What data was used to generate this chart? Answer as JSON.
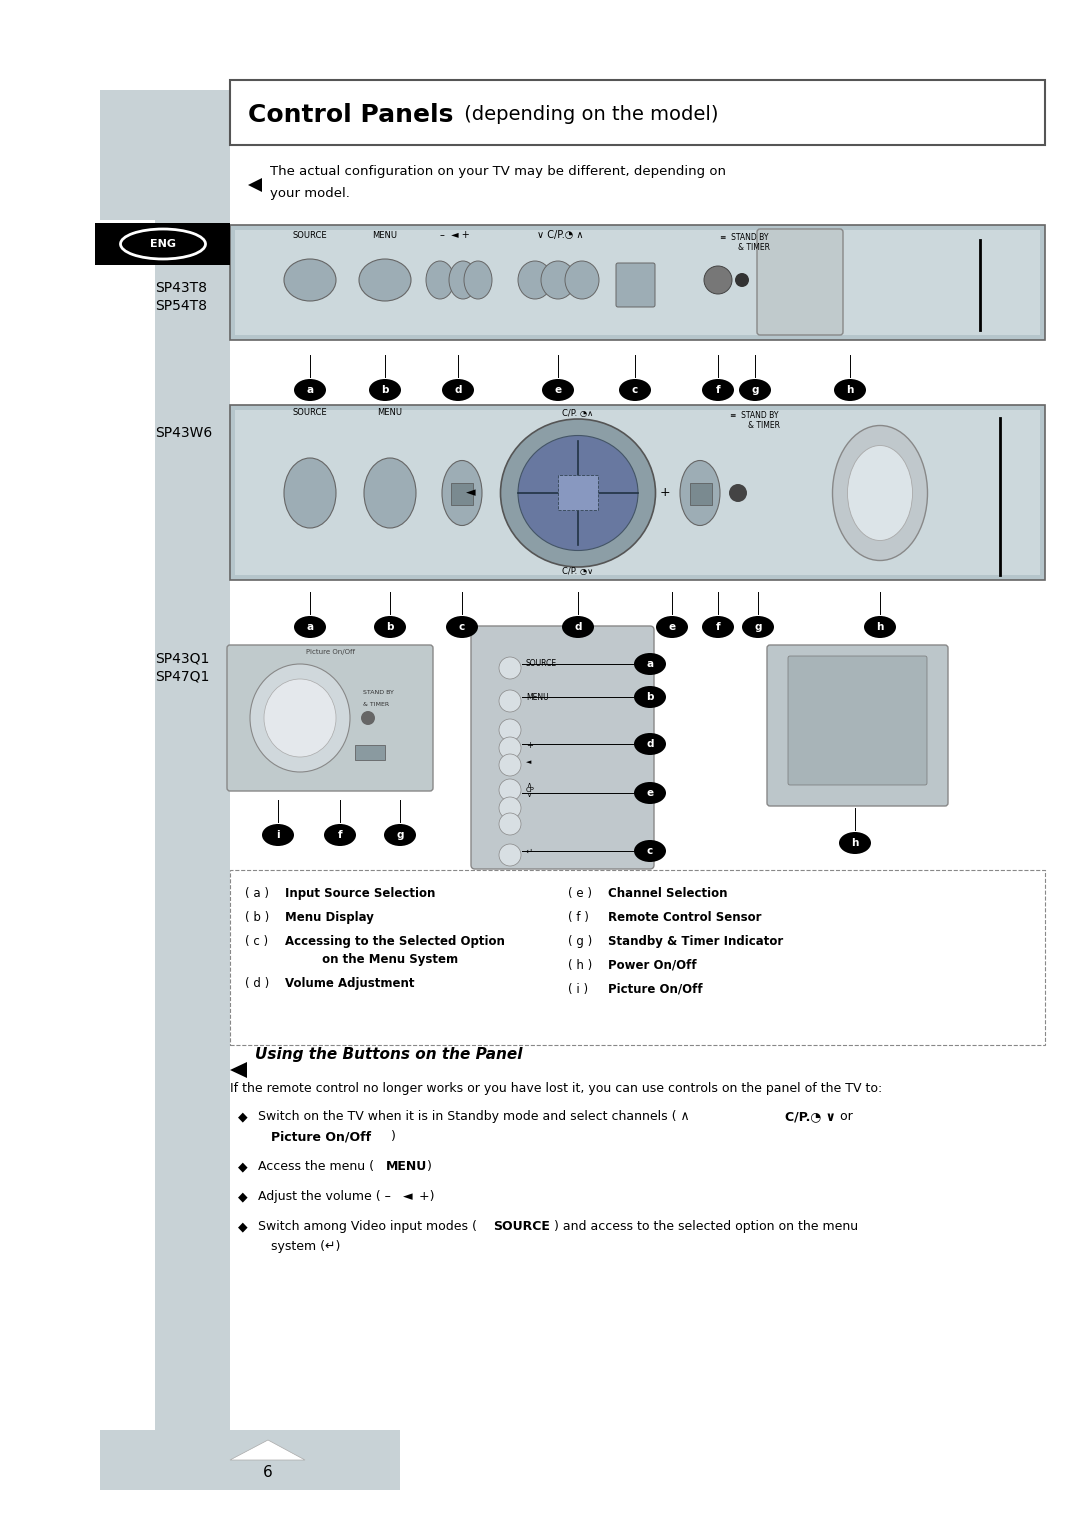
{
  "page_bg": "#ffffff",
  "sidebar_color": "#c8d2d6",
  "title": "Control Panels",
  "title_normal": " (depending on the model)",
  "note": "The actual configuration on your TV may be different, depending on\nyour model.",
  "model1": "SP43T8\nSP54T8",
  "model2": "SP43W6",
  "model3": "SP43Q1\nSP47Q1",
  "legend_left": [
    [
      "( a )",
      "Input Source Selection"
    ],
    [
      "( b )",
      "Menu Display"
    ],
    [
      "( c )",
      "Accessing to the Selected Option\n         on the Menu System"
    ],
    [
      "( d )",
      "Volume Adjustment"
    ]
  ],
  "legend_right": [
    [
      "( e )",
      "Channel Selection"
    ],
    [
      "( f )",
      "Remote Control Sensor"
    ],
    [
      "( g )",
      "Standby & Timer Indicator"
    ],
    [
      "( h )",
      "Power On/Off"
    ],
    [
      "( i )",
      "Picture On/Off"
    ]
  ],
  "using_title": "Using the Buttons on the Panel",
  "body_text": "If the remote control no longer works or you have lost it, you can use controls on the panel of the TV to:",
  "bullet1_pre": "Switch on the TV when it is in Standby mode and select channels ( ",
  "bullet1_bold": "∧ C/P.◔ ∨",
  "bullet1_post": " or",
  "bullet1b_bold": "Picture On/Off",
  "bullet1b_post": ")",
  "bullet2_pre": "Access the menu ( ",
  "bullet2_bold": "MENU",
  "bullet2_post": " )",
  "bullet3_pre": "Adjust the volume ( –  ",
  "bullet3_bold": "◄",
  "bullet3_post": " +)",
  "bullet4_pre": "Switch among Video input modes ( ",
  "bullet4_bold": "SOURCE",
  "bullet4_post": " ) and access to the selected option on the menu",
  "bullet4b": "system (",
  "bullet4b_sym": "↵",
  "bullet4b_post": ")",
  "page_num": "6"
}
